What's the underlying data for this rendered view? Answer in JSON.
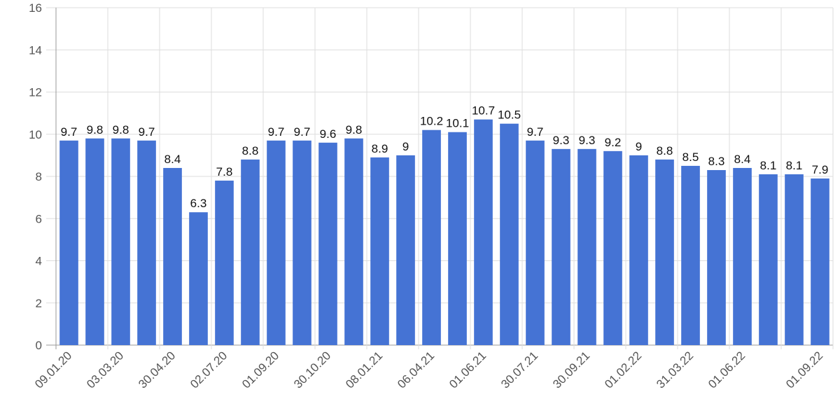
{
  "chart_data": {
    "type": "bar",
    "categories": [
      "09.01.20",
      null,
      "03.03.20",
      null,
      "30.04.20",
      null,
      "02.07.20",
      null,
      "01.09.20",
      null,
      "30.10.20",
      null,
      "08.01.21",
      null,
      "06.04.21",
      null,
      "01.06.21",
      null,
      "30.07.21",
      null,
      "30.09.21",
      null,
      "01.02.22",
      null,
      "31.03.22",
      null,
      "01.06.22",
      null,
      null,
      "01.09.22"
    ],
    "values": [
      9.7,
      9.8,
      9.8,
      9.7,
      8.4,
      6.3,
      7.8,
      8.8,
      9.7,
      9.7,
      9.6,
      9.8,
      8.9,
      9,
      10.2,
      10.1,
      10.7,
      10.5,
      9.7,
      9.3,
      9.3,
      9.2,
      9,
      8.8,
      8.5,
      8.3,
      8.4,
      8.1,
      8.1,
      7.9
    ],
    "color": "#4573d4",
    "ylim": [
      0,
      16
    ],
    "yticks": [
      0,
      2,
      4,
      6,
      8,
      10,
      12,
      14,
      16
    ],
    "grid": true
  }
}
